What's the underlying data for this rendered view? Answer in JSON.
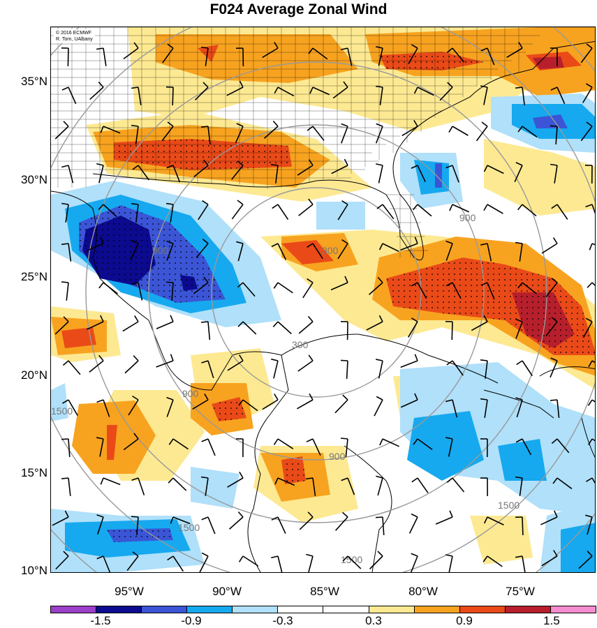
{
  "title": "F024 Average Zonal Wind",
  "credit": {
    "line1": "© 2016 ECMWF",
    "line2": "R. Torn, UAlbany"
  },
  "lat_labels": [
    "35°N",
    "30°N",
    "25°N",
    "20°N",
    "15°N",
    "10°N"
  ],
  "lon_labels": [
    "95°W",
    "90°W",
    "85°W",
    "80°W",
    "75°W"
  ],
  "range_ring_labels": [
    "300",
    "900",
    "1500"
  ],
  "colorbar": {
    "colors": [
      "#9c3fc9",
      "#0c0a8f",
      "#3b55d6",
      "#16a9ef",
      "#b0e0fa",
      "#ffffff",
      "#ffffff",
      "#fde992",
      "#f7a320",
      "#ea4a18",
      "#b71f2c",
      "#f58cd0"
    ],
    "tick_labels": [
      "-1.5",
      "-0.9",
      "-0.3",
      "0.3",
      "0.9",
      "1.5"
    ]
  }
}
